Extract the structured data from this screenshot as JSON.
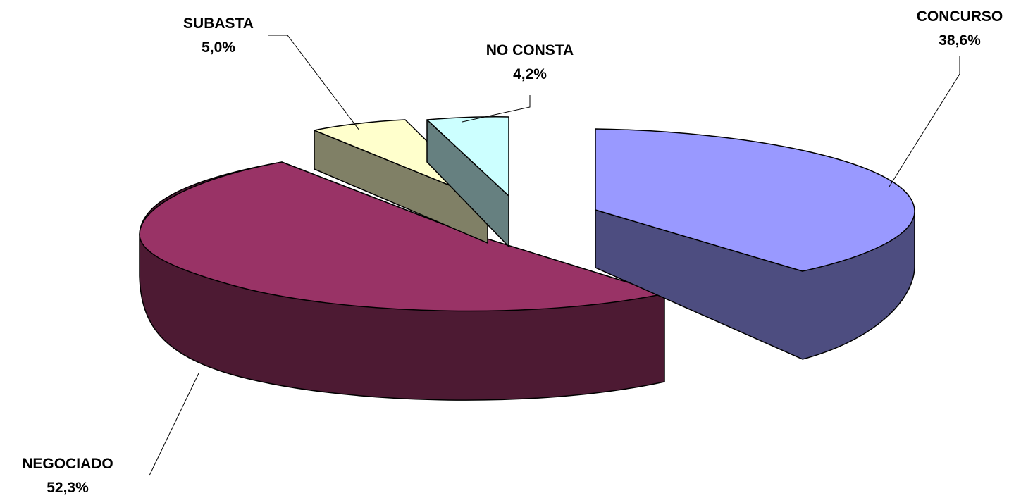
{
  "chart_data": {
    "type": "pie",
    "title": "",
    "slices": [
      {
        "label": "CONCURSO",
        "value": 38.6,
        "value_label": "38,6%",
        "top": "#9999ff",
        "side": "#4d4d80"
      },
      {
        "label": "NEGOCIADO",
        "value": 52.3,
        "value_label": "52,3%",
        "top": "#993366",
        "side": "#4d1a33"
      },
      {
        "label": "SUBASTA",
        "value": 5.0,
        "value_label": "5,0%",
        "top": "#ffffcc",
        "side": "#808066"
      },
      {
        "label": "NO CONSTA",
        "value": 4.2,
        "value_label": "4,2%",
        "top": "#ccffff",
        "side": "#668080"
      }
    ],
    "exploded": true,
    "three_d": true,
    "legend": "none",
    "grid": false
  }
}
